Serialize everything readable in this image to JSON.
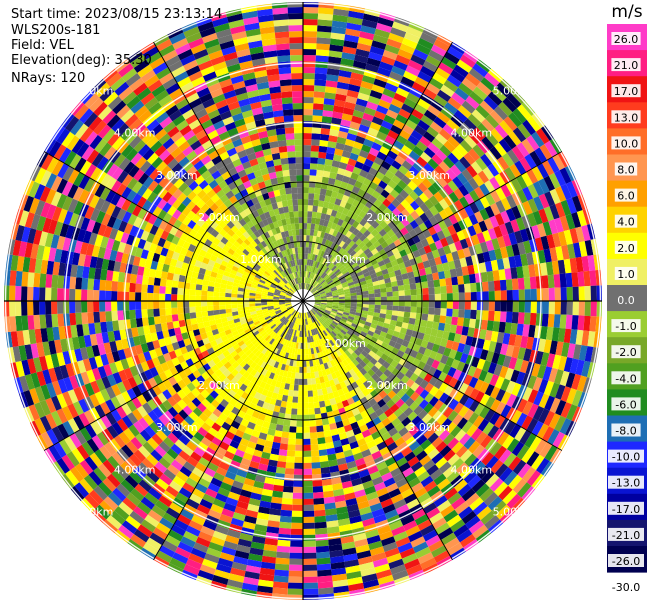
{
  "header": {
    "start_time": "Start time: 2023/08/15 23:13:14",
    "instrument": "WLS200s-181",
    "field": "Field: VEL",
    "elevation": "Elevation(deg): 35.30",
    "nrays": "NRays: 120"
  },
  "colorbar": {
    "unit": "m/s",
    "ticks": [
      "26.0",
      "21.0",
      "17.0",
      "13.0",
      "10.0",
      "8.0",
      "6.0",
      "4.0",
      "2.0",
      "1.0",
      "0.0",
      "-1.0",
      "-2.0",
      "-4.0",
      "-6.0",
      "-8.0",
      "-10.0",
      "-13.0",
      "-17.0",
      "-21.0",
      "-26.0",
      "-30.0"
    ],
    "colors": [
      "#ff3cc8",
      "#ff1e82",
      "#f01414",
      "#ff3c1e",
      "#ff6e28",
      "#ff9650",
      "#ffa000",
      "#ffd200",
      "#ffff00",
      "#f0f064",
      "#707070",
      "#9acd32",
      "#78a828",
      "#50a020",
      "#208c20",
      "#1e6eb4",
      "#1e28ff",
      "#0a14d2",
      "#0000a0",
      "#14146e",
      "#000050"
    ]
  },
  "chart_data": {
    "type": "heatmap",
    "projection": "polar PPI",
    "field": "VEL",
    "unit": "m/s",
    "nrays": 120,
    "value_range": [
      -30.0,
      26.0
    ],
    "range_rings": [
      {
        "label": "1.00km",
        "label_positions": [
          "NW",
          "NE",
          "SE"
        ]
      },
      {
        "label": "2.00km",
        "label_positions": [
          "NW",
          "NE",
          "SW",
          "SE"
        ]
      },
      {
        "label": "3.00km",
        "label_positions": [
          "NW",
          "NE",
          "SW",
          "SE"
        ]
      },
      {
        "label": "4.00km",
        "label_positions": [
          "NW",
          "NE",
          "SW",
          "SE"
        ]
      },
      {
        "label": "5.00km",
        "label_positions": [
          "NW",
          "NE",
          "SW",
          "SE"
        ]
      }
    ],
    "near_field_pattern": {
      "west_south_sector": "yellow (2.0 to 4.0 m/s)",
      "north_east_sector": "green (-1.0 to -2.0 m/s)",
      "outer_rings": "noise (full range)"
    }
  }
}
